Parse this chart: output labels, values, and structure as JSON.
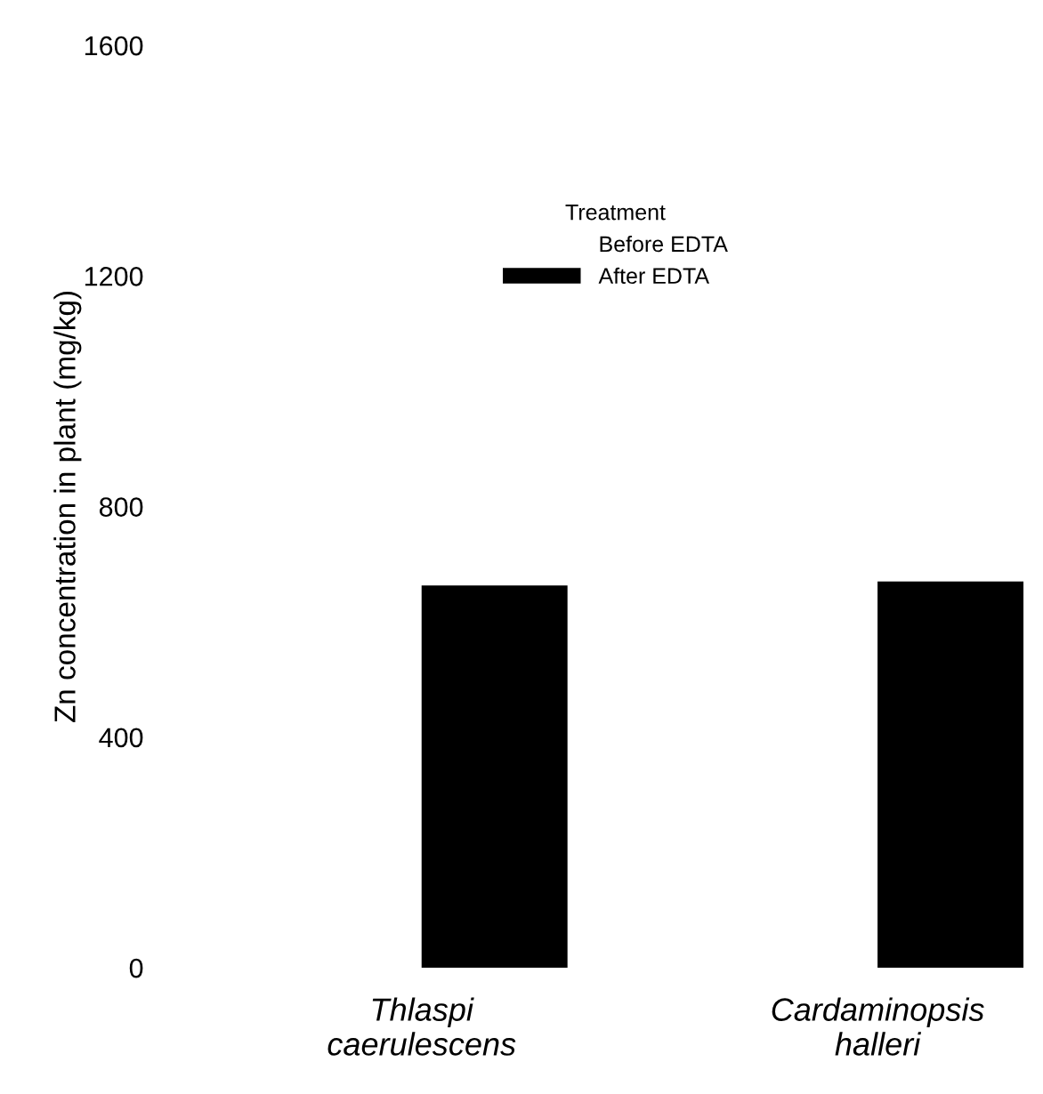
{
  "chart_data": {
    "type": "bar",
    "ylabel": "Zn concentration in plant (mg/kg)",
    "legend_title": "Treatment",
    "categories": [
      "Thlaspi\ncaerulescens",
      "Cardaminopsis\nhalleri"
    ],
    "series": [
      {
        "name": "Before EDTA",
        "values": [
          null,
          null
        ]
      },
      {
        "name": "After EDTA",
        "color": "#000000",
        "values": [
          663,
          670
        ]
      }
    ],
    "ylim": [
      0,
      1600
    ],
    "yticks": [
      0,
      400,
      800,
      1200,
      1600
    ],
    "grid": false,
    "legend": "top"
  }
}
